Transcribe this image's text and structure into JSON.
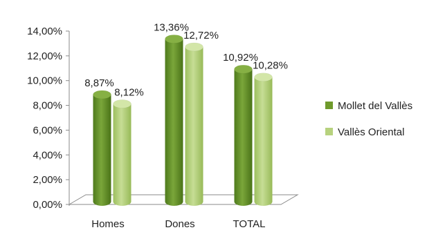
{
  "chart_data": {
    "type": "bar",
    "categories": [
      "Homes",
      "Dones",
      "TOTAL"
    ],
    "series": [
      {
        "name": "Mollet del Vallès",
        "values": [
          8.87,
          13.36,
          10.92
        ],
        "labels": [
          "8,87%",
          "13,36%",
          "10,92%"
        ],
        "color": "#6f9a2c"
      },
      {
        "name": "Vallès Oriental",
        "values": [
          8.12,
          12.72,
          10.28
        ],
        "labels": [
          "8,12%",
          "12,72%",
          "10,28%"
        ],
        "color": "#b7d27e"
      }
    ],
    "yticks": [
      {
        "value": 0,
        "label": "0,00%"
      },
      {
        "value": 2,
        "label": "2,00%"
      },
      {
        "value": 4,
        "label": "4,00%"
      },
      {
        "value": 6,
        "label": "6,00%"
      },
      {
        "value": 8,
        "label": "8,00%"
      },
      {
        "value": 10,
        "label": "10,00%"
      },
      {
        "value": 12,
        "label": "12,00%"
      },
      {
        "value": 14,
        "label": "14,00%"
      }
    ],
    "ylim": [
      0,
      14
    ],
    "grid": false,
    "legend_position": "right",
    "bar_style": "3d-cylinder"
  }
}
